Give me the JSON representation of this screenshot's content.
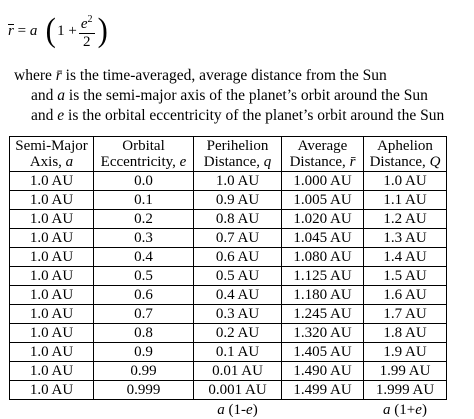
{
  "formula": {
    "lhs": "r̄",
    "eq": "= a",
    "one_plus": "1 +",
    "num_base": "e",
    "num_exp": "2",
    "den": "2"
  },
  "description": {
    "line1": "where r̄ is the time-averaged, average distance from the Sun",
    "line2": "and a is the semi-major axis of the planet’s orbit around the Sun",
    "line3": "and e is the orbital eccentricity of the planet’s orbit around the Sun"
  },
  "table": {
    "headers": [
      [
        "Semi-Major",
        "Axis, a"
      ],
      [
        "Orbital",
        "Eccentricity, e"
      ],
      [
        "Perihelion",
        "Distance, q"
      ],
      [
        "Average",
        "Distance, r̄"
      ],
      [
        "Aphelion",
        "Distance, Q"
      ]
    ],
    "rows": [
      [
        "1.0 AU",
        "0.0",
        "1.0 AU",
        "1.000 AU",
        "1.0 AU"
      ],
      [
        "1.0 AU",
        "0.1",
        "0.9 AU",
        "1.005 AU",
        "1.1 AU"
      ],
      [
        "1.0 AU",
        "0.2",
        "0.8 AU",
        "1.020 AU",
        "1.2 AU"
      ],
      [
        "1.0 AU",
        "0.3",
        "0.7 AU",
        "1.045 AU",
        "1.3 AU"
      ],
      [
        "1.0 AU",
        "0.4",
        "0.6 AU",
        "1.080 AU",
        "1.4 AU"
      ],
      [
        "1.0 AU",
        "0.5",
        "0.5 AU",
        "1.125 AU",
        "1.5 AU"
      ],
      [
        "1.0 AU",
        "0.6",
        "0.4 AU",
        "1.180 AU",
        "1.6 AU"
      ],
      [
        "1.0 AU",
        "0.7",
        "0.3 AU",
        "1.245 AU",
        "1.7 AU"
      ],
      [
        "1.0 AU",
        "0.8",
        "0.2 AU",
        "1.320 AU",
        "1.8 AU"
      ],
      [
        "1.0 AU",
        "0.9",
        "0.1 AU",
        "1.405 AU",
        "1.9 AU"
      ],
      [
        "1.0 AU",
        "0.99",
        "0.01 AU",
        "1.490 AU",
        "1.99 AU"
      ],
      [
        "1.0 AU",
        "0.999",
        "0.001 AU",
        "1.499 AU",
        "1.999 AU"
      ]
    ],
    "footer": [
      "",
      "",
      "a (1-e)",
      "",
      "a (1+e)"
    ]
  }
}
